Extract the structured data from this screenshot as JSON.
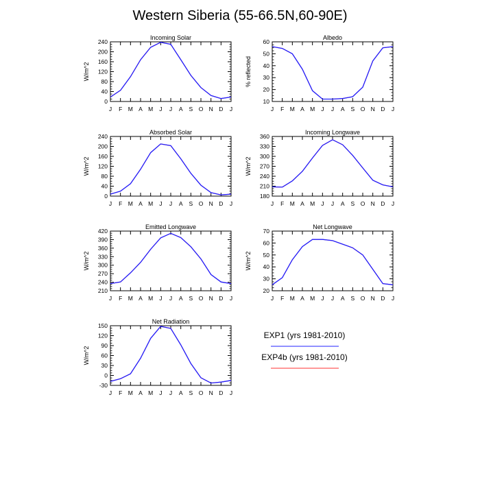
{
  "title": "Western Siberia (55-66.5N,60-90E)",
  "colors": {
    "exp1": "#2020ff",
    "exp4b": "#ff3030",
    "axis": "#000000"
  },
  "legend": [
    {
      "label": "EXP1 (yrs 1981-2010)",
      "color": "#2020ff"
    },
    {
      "label": "EXP4b (yrs 1981-2010)",
      "color": "#ff3030"
    }
  ],
  "chart_data": [
    {
      "type": "line",
      "title": "Incoming Solar",
      "ylabel": "W/m^2",
      "categories": [
        "J",
        "F",
        "M",
        "A",
        "M",
        "J",
        "J",
        "A",
        "S",
        "O",
        "N",
        "D",
        "J"
      ],
      "ylim": [
        0,
        240
      ],
      "yticks": [
        0,
        40,
        80,
        120,
        160,
        200,
        240
      ],
      "series": [
        {
          "name": "EXP1 (yrs 1981-2010)",
          "values": [
            18,
            45,
            100,
            168,
            218,
            238,
            230,
            168,
            105,
            56,
            24,
            12,
            18
          ]
        },
        {
          "name": "EXP4b (yrs 1981-2010)",
          "values": [
            18,
            45,
            100,
            168,
            218,
            238,
            230,
            168,
            105,
            56,
            24,
            12,
            18
          ]
        }
      ]
    },
    {
      "type": "line",
      "title": "Albedo",
      "ylabel": "% reflected",
      "categories": [
        "J",
        "F",
        "M",
        "A",
        "M",
        "J",
        "J",
        "A",
        "S",
        "O",
        "N",
        "D",
        "J"
      ],
      "ylim": [
        10,
        60
      ],
      "yticks": [
        10,
        20,
        30,
        40,
        50,
        60
      ],
      "series": [
        {
          "name": "EXP1 (yrs 1981-2010)",
          "values": [
            56,
            54.5,
            50,
            37,
            19,
            12,
            12,
            12.5,
            14,
            22,
            44,
            55,
            56
          ]
        },
        {
          "name": "EXP4b (yrs 1981-2010)",
          "values": [
            56,
            54.5,
            50,
            37,
            19,
            12,
            12,
            12.5,
            14,
            22,
            44,
            55,
            56
          ]
        }
      ]
    },
    {
      "type": "line",
      "title": "Absorbed Solar",
      "ylabel": "W/m^2",
      "categories": [
        "J",
        "F",
        "M",
        "A",
        "M",
        "J",
        "J",
        "A",
        "S",
        "O",
        "N",
        "D",
        "J"
      ],
      "ylim": [
        0,
        240
      ],
      "yticks": [
        0,
        40,
        80,
        120,
        160,
        200,
        240
      ],
      "series": [
        {
          "name": "EXP1 (yrs 1981-2010)",
          "values": [
            8,
            20,
            50,
            108,
            175,
            210,
            203,
            150,
            92,
            44,
            14,
            5,
            8
          ]
        },
        {
          "name": "EXP4b (yrs 1981-2010)",
          "values": [
            8,
            20,
            50,
            108,
            175,
            210,
            203,
            150,
            92,
            44,
            14,
            5,
            8
          ]
        }
      ]
    },
    {
      "type": "line",
      "title": "Incoming Longwave",
      "ylabel": "W/m^2",
      "categories": [
        "J",
        "F",
        "M",
        "A",
        "M",
        "J",
        "J",
        "A",
        "S",
        "O",
        "N",
        "D",
        "J"
      ],
      "ylim": [
        180,
        360
      ],
      "yticks": [
        180,
        210,
        240,
        270,
        300,
        330,
        360
      ],
      "series": [
        {
          "name": "EXP1 (yrs 1981-2010)",
          "values": [
            208,
            207,
            226,
            255,
            295,
            333,
            350,
            335,
            303,
            265,
            228,
            214,
            208
          ]
        },
        {
          "name": "EXP4b (yrs 1981-2010)",
          "values": [
            208,
            207,
            226,
            255,
            295,
            333,
            350,
            335,
            303,
            265,
            228,
            214,
            208
          ]
        }
      ]
    },
    {
      "type": "line",
      "title": "Emitted Longwave",
      "ylabel": "W/m^2",
      "categories": [
        "J",
        "F",
        "M",
        "A",
        "M",
        "J",
        "J",
        "A",
        "S",
        "O",
        "N",
        "D",
        "J"
      ],
      "ylim": [
        210,
        420
      ],
      "yticks": [
        210,
        240,
        270,
        300,
        330,
        360,
        390,
        420
      ],
      "series": [
        {
          "name": "EXP1 (yrs 1981-2010)",
          "values": [
            235,
            241,
            273,
            310,
            356,
            396,
            412,
            397,
            365,
            322,
            267,
            241,
            235
          ]
        },
        {
          "name": "EXP4b (yrs 1981-2010)",
          "values": [
            235,
            241,
            273,
            310,
            356,
            396,
            412,
            397,
            365,
            322,
            267,
            241,
            235
          ]
        }
      ]
    },
    {
      "type": "line",
      "title": "Net Longwave",
      "ylabel": "W/m^2",
      "categories": [
        "J",
        "F",
        "M",
        "A",
        "M",
        "J",
        "J",
        "A",
        "S",
        "O",
        "N",
        "D",
        "J"
      ],
      "ylim": [
        20,
        70
      ],
      "yticks": [
        20,
        30,
        40,
        50,
        60,
        70
      ],
      "series": [
        {
          "name": "EXP1 (yrs 1981-2010)",
          "values": [
            25,
            31,
            46,
            57,
            63,
            63,
            62,
            59,
            56,
            50,
            38,
            26,
            25
          ]
        },
        {
          "name": "EXP4b (yrs 1981-2010)",
          "values": [
            25,
            31,
            46,
            57,
            63,
            63,
            62,
            59,
            56,
            50,
            38,
            26,
            25
          ]
        }
      ]
    },
    {
      "type": "line",
      "title": "Net Radiation",
      "ylabel": "W/m^2",
      "categories": [
        "J",
        "F",
        "M",
        "A",
        "M",
        "J",
        "J",
        "A",
        "S",
        "O",
        "N",
        "D",
        "J"
      ],
      "ylim": [
        -30,
        150
      ],
      "yticks": [
        -30,
        0,
        30,
        60,
        90,
        120,
        150
      ],
      "series": [
        {
          "name": "EXP1 (yrs 1981-2010)",
          "values": [
            -18,
            -10,
            5,
            52,
            112,
            148,
            142,
            92,
            36,
            -7,
            -23,
            -20,
            -15
          ]
        },
        {
          "name": "EXP4b (yrs 1981-2010)",
          "values": [
            -18,
            -10,
            5,
            52,
            112,
            148,
            142,
            92,
            36,
            -7,
            -23,
            -20,
            -15
          ]
        }
      ]
    }
  ]
}
